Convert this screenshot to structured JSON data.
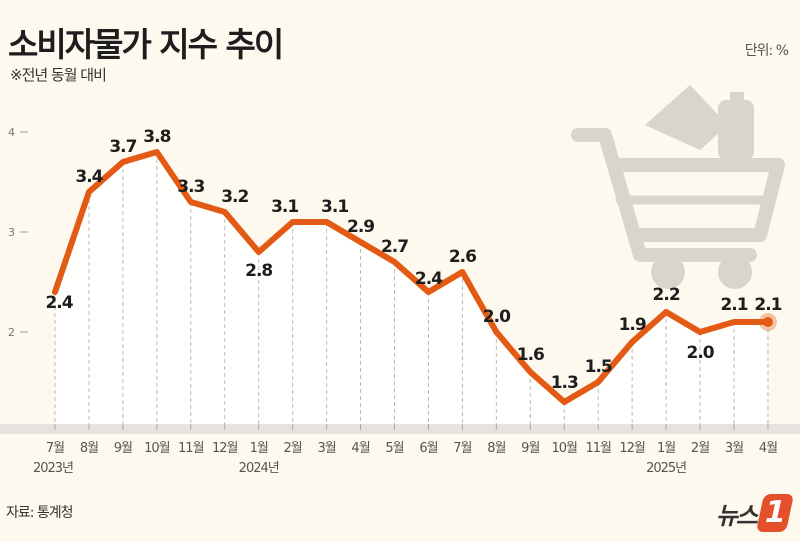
{
  "header": {
    "title": "소비자물가 지수 추이",
    "subtitle": "※전년 동월 대비",
    "unit": "단위: %"
  },
  "footer": {
    "source": "자료: 통계청",
    "logo": "뉴스1"
  },
  "colors": {
    "line": "#e35a14",
    "background": "#fdf9ef",
    "icon": "#d9d4cc"
  },
  "icon": "shopping-cart-icon",
  "chart_data": {
    "type": "line",
    "title": "소비자물가 지수 추이",
    "ylabel": "",
    "xlabel": "",
    "ylim": [
      1.0,
      4.0
    ],
    "yticks": [
      2,
      3,
      4
    ],
    "grid": false,
    "categories": [
      "7월",
      "8월",
      "9월",
      "10월",
      "11월",
      "12월",
      "1월",
      "2월",
      "3월",
      "4월",
      "5월",
      "6월",
      "7월",
      "8월",
      "9월",
      "10월",
      "11월",
      "12월",
      "1월",
      "2월",
      "3월",
      "4월"
    ],
    "year_labels": [
      {
        "label": "2023년",
        "at": "7월"
      },
      {
        "label": "2024년",
        "at": "1월"
      },
      {
        "label": "2025년",
        "at": "1월"
      }
    ],
    "values": [
      2.4,
      3.4,
      3.7,
      3.8,
      3.3,
      3.2,
      2.8,
      3.1,
      3.1,
      2.9,
      2.7,
      2.4,
      2.6,
      2.0,
      1.6,
      1.3,
      1.5,
      1.9,
      2.2,
      2.0,
      2.1,
      2.1
    ],
    "data_labels": [
      "2.4",
      "3.4",
      "3.7",
      "3.8",
      "3.3",
      "3.2",
      "2.8",
      "3.1",
      "3.1",
      "2.9",
      "2.7",
      "2.4",
      "2.6",
      "2.0",
      "1.6",
      "1.3",
      "1.5",
      "1.9",
      "2.2",
      "2.0",
      "2.1",
      "2.1"
    ]
  }
}
